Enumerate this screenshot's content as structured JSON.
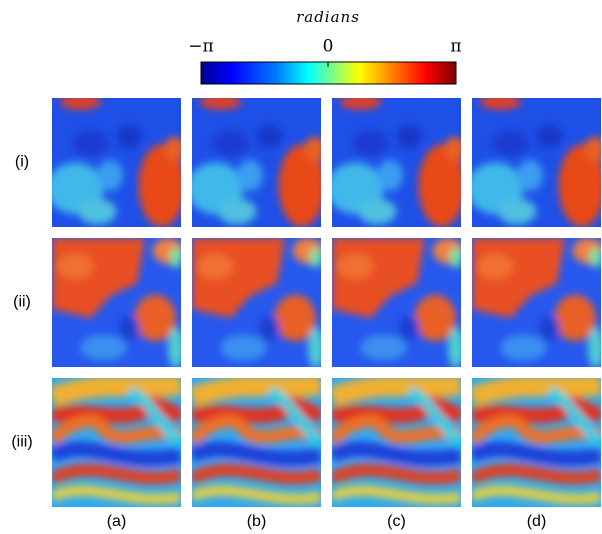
{
  "colorbar": {
    "title": "radians",
    "ticks": [
      "−π",
      "0",
      "π"
    ]
  },
  "rows": [
    "(i)",
    "(ii)",
    "(iii)"
  ],
  "columns": [
    "(a)",
    "(b)",
    "(c)",
    "(d)"
  ]
}
